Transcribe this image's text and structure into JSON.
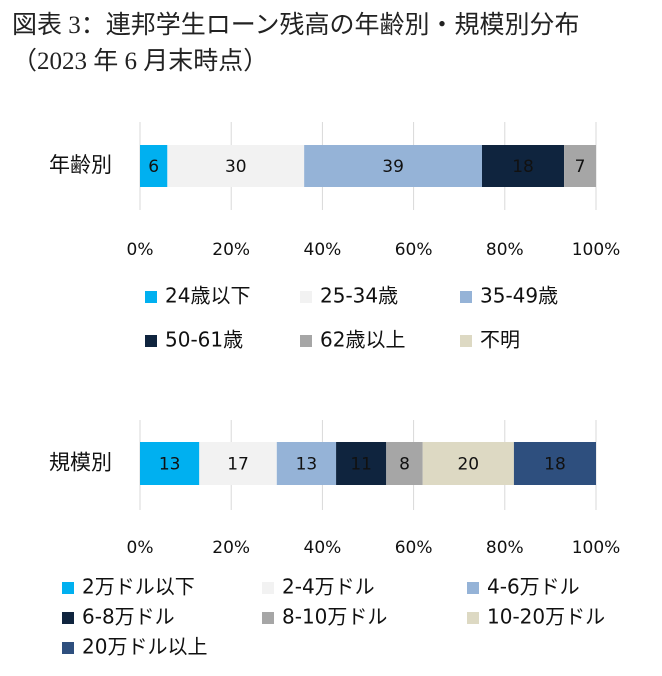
{
  "title": "図表 3：連邦学生ローン残高の年齢別・規模別分布（2023 年 6 月末時点）",
  "chart_data": [
    {
      "type": "stacked-bar-horizontal",
      "categories": [
        "年齢別"
      ],
      "xlim": [
        0,
        100
      ],
      "xticks": [
        {
          "value": 0,
          "label": "0%"
        },
        {
          "value": 20,
          "label": "20%"
        },
        {
          "value": 40,
          "label": "40%"
        },
        {
          "value": 60,
          "label": "60%"
        },
        {
          "value": 80,
          "label": "80%"
        },
        {
          "value": 100,
          "label": "100%"
        }
      ],
      "grid": true,
      "legend": "bottom",
      "series": [
        {
          "name": "24歳以下",
          "color": "#00b0f0",
          "values": [
            6
          ]
        },
        {
          "name": "25-34歳",
          "color": "#f2f2f2",
          "values": [
            30
          ]
        },
        {
          "name": "35-49歳",
          "color": "#95b3d7",
          "values": [
            39
          ]
        },
        {
          "name": "50-61歳",
          "color": "#0f243e",
          "values": [
            18
          ]
        },
        {
          "name": "62歳以上",
          "color": "#a6a6a6",
          "values": [
            7
          ]
        },
        {
          "name": "不明",
          "color": "#ddd9c3",
          "values": [
            null
          ]
        }
      ]
    },
    {
      "type": "stacked-bar-horizontal",
      "categories": [
        "規模別"
      ],
      "xlim": [
        0,
        100
      ],
      "xticks": [
        {
          "value": 0,
          "label": "0%"
        },
        {
          "value": 20,
          "label": "20%"
        },
        {
          "value": 40,
          "label": "40%"
        },
        {
          "value": 60,
          "label": "60%"
        },
        {
          "value": 80,
          "label": "80%"
        },
        {
          "value": 100,
          "label": "100%"
        }
      ],
      "grid": true,
      "legend": "bottom",
      "series": [
        {
          "name": "2万ドル以下",
          "color": "#00b0f0",
          "values": [
            13
          ]
        },
        {
          "name": "2-4万ドル",
          "color": "#f2f2f2",
          "values": [
            17
          ]
        },
        {
          "name": "4-6万ドル",
          "color": "#95b3d7",
          "values": [
            13
          ]
        },
        {
          "name": "6-8万ドル",
          "color": "#0f243e",
          "values": [
            11
          ]
        },
        {
          "name": "8-10万ドル",
          "color": "#a6a6a6",
          "values": [
            8
          ]
        },
        {
          "name": "10-20万ドル",
          "color": "#ddd9c3",
          "values": [
            20
          ]
        },
        {
          "name": "20万ドル以上",
          "color": "#2e4f7e",
          "values": [
            18
          ]
        }
      ]
    }
  ]
}
